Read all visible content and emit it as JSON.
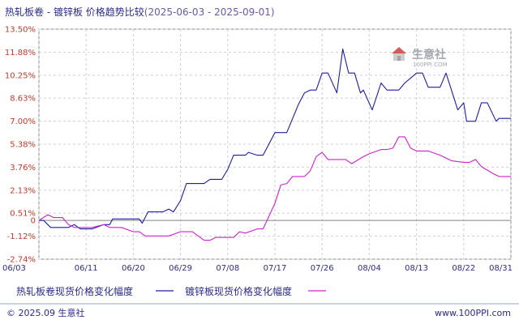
{
  "chart_data": {
    "type": "line",
    "title": "热轧板卷 - 镀锌板 价格趋势比较",
    "date_range": "(2025-06-03 - 2025-09-01)",
    "y_ticks": [
      "13.50%",
      "11.88%",
      "10.25%",
      "8.63%",
      "7.00%",
      "5.38%",
      "3.76%",
      "2.13%",
      "0.51%",
      "0",
      "-1.12%",
      "-2.74%"
    ],
    "y_tick_values": [
      13.5,
      11.88,
      10.25,
      8.63,
      7.0,
      5.38,
      3.76,
      2.13,
      0.51,
      0,
      -1.12,
      -2.74
    ],
    "ylim": [
      -2.74,
      13.5
    ],
    "x_ticks": [
      "06/03",
      "06/11",
      "06/20",
      "06/29",
      "07/08",
      "07/17",
      "07/26",
      "08/04",
      "08/13",
      "08/22",
      "08/31"
    ],
    "grid": true,
    "legend_position": "bottom",
    "series": [
      {
        "name": "热轧板卷现货价格变化幅度",
        "color": "#1c1ca8",
        "points": [
          [
            0,
            0
          ],
          [
            0.8,
            0
          ],
          [
            2,
            -0.5
          ],
          [
            5,
            -0.5
          ],
          [
            6,
            -0.3
          ],
          [
            7,
            -0.6
          ],
          [
            9,
            -0.6
          ],
          [
            11,
            -0.3
          ],
          [
            12,
            -0.3
          ],
          [
            12.5,
            0.1
          ],
          [
            17,
            0.1
          ],
          [
            17.5,
            -0.2
          ],
          [
            18.5,
            0.6
          ],
          [
            21,
            0.6
          ],
          [
            22,
            0.8
          ],
          [
            22.8,
            0.6
          ],
          [
            24,
            1.4
          ],
          [
            25,
            2.6
          ],
          [
            28,
            2.6
          ],
          [
            29,
            2.9
          ],
          [
            31,
            2.9
          ],
          [
            32,
            3.6
          ],
          [
            33,
            4.6
          ],
          [
            35,
            4.6
          ],
          [
            35.5,
            4.8
          ],
          [
            37,
            4.6
          ],
          [
            38,
            4.6
          ],
          [
            40,
            6.2
          ],
          [
            42,
            6.2
          ],
          [
            44,
            8.2
          ],
          [
            45,
            9.0
          ],
          [
            46,
            9.2
          ],
          [
            47,
            9.2
          ],
          [
            48,
            10.4
          ],
          [
            49,
            10.4
          ],
          [
            50.5,
            9.0
          ],
          [
            51.5,
            12.1
          ],
          [
            52.5,
            10.4
          ],
          [
            53.5,
            10.4
          ],
          [
            54.5,
            9.0
          ],
          [
            55,
            9.2
          ],
          [
            56.5,
            7.8
          ],
          [
            58,
            9.7
          ],
          [
            59,
            9.2
          ],
          [
            61,
            9.2
          ],
          [
            62,
            9.7
          ],
          [
            64,
            10.4
          ],
          [
            65,
            10.4
          ],
          [
            66,
            9.4
          ],
          [
            68,
            9.4
          ],
          [
            69,
            10.4
          ],
          [
            71,
            7.8
          ],
          [
            72,
            8.3
          ],
          [
            72.5,
            7.0
          ],
          [
            74,
            7.0
          ],
          [
            75,
            8.3
          ],
          [
            76,
            8.3
          ],
          [
            77.5,
            7.0
          ],
          [
            78,
            7.2
          ],
          [
            80,
            7.2
          ]
        ]
      },
      {
        "name": "镀锌板现货价格变化幅度",
        "color": "#d020d0",
        "points": [
          [
            0,
            0
          ],
          [
            1.5,
            0.4
          ],
          [
            2.5,
            0.2
          ],
          [
            4,
            0.2
          ],
          [
            5,
            -0.3
          ],
          [
            6,
            -0.5
          ],
          [
            9,
            -0.5
          ],
          [
            11,
            -0.3
          ],
          [
            12,
            -0.5
          ],
          [
            14,
            -0.5
          ],
          [
            16,
            -0.8
          ],
          [
            17,
            -0.8
          ],
          [
            18,
            -1.1
          ],
          [
            22,
            -1.1
          ],
          [
            24,
            -0.8
          ],
          [
            26,
            -0.8
          ],
          [
            28,
            -1.4
          ],
          [
            29,
            -1.4
          ],
          [
            30,
            -1.2
          ],
          [
            31,
            -1.2
          ],
          [
            33,
            -1.2
          ],
          [
            34,
            -0.8
          ],
          [
            35,
            -0.9
          ],
          [
            37,
            -0.6
          ],
          [
            38,
            -0.6
          ],
          [
            40,
            1.2
          ],
          [
            41,
            2.5
          ],
          [
            42,
            2.6
          ],
          [
            43,
            3.1
          ],
          [
            45,
            3.1
          ],
          [
            46,
            3.5
          ],
          [
            47,
            4.5
          ],
          [
            48,
            4.8
          ],
          [
            49,
            4.3
          ],
          [
            52,
            4.3
          ],
          [
            53,
            4.0
          ],
          [
            55,
            4.5
          ],
          [
            56,
            4.7
          ],
          [
            58,
            5.0
          ],
          [
            59,
            5.0
          ],
          [
            60,
            5.1
          ],
          [
            61,
            5.9
          ],
          [
            62,
            5.9
          ],
          [
            63,
            5.1
          ],
          [
            64,
            4.9
          ],
          [
            66,
            4.9
          ],
          [
            68,
            4.6
          ],
          [
            69,
            4.4
          ],
          [
            70,
            4.2
          ],
          [
            72,
            4.1
          ],
          [
            73,
            4.1
          ],
          [
            74,
            4.3
          ],
          [
            75,
            3.8
          ],
          [
            77,
            3.3
          ],
          [
            78,
            3.1
          ],
          [
            80,
            3.1
          ]
        ]
      }
    ]
  },
  "footer": {
    "copyright": "© 2025.09 生意社",
    "website": "www.100PPI.com"
  },
  "watermark": {
    "brand": "生意社",
    "url": "100PPI.COM"
  }
}
